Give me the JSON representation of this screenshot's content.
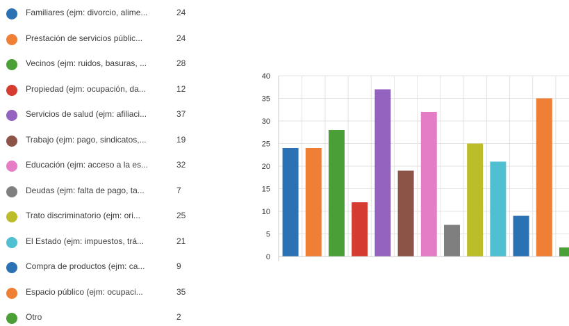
{
  "chart_data": {
    "type": "bar",
    "categories": [
      "Familiares (ejm: divorcio, alime...",
      "Prestación de servicios públic...",
      "Vecinos (ejm: ruidos, basuras, ...",
      "Propiedad (ejm: ocupación, da...",
      "Servicios de salud (ejm: afiliaci...",
      "Trabajo (ejm: pago, sindicatos,...",
      "Educación (ejm: acceso a la es...",
      "Deudas (ejm: falta de pago, ta...",
      "Trato discriminatorio (ejm: ori...",
      "El Estado (ejm: impuestos, trá...",
      "Compra de productos (ejm: ca...",
      "Espacio público (ejm: ocupaci...",
      "Otro"
    ],
    "values": [
      24,
      24,
      28,
      12,
      37,
      19,
      32,
      7,
      25,
      21,
      9,
      35,
      2
    ],
    "colors": [
      "#2b72b5",
      "#f07f36",
      "#4aa036",
      "#d63b30",
      "#9363bf",
      "#8c5447",
      "#e57cc6",
      "#7f7f7f",
      "#bcbd28",
      "#4fc0d2",
      "#2b72b5",
      "#f07f36",
      "#4aa036"
    ],
    "ylim": [
      0,
      40
    ],
    "yticks": [
      "0",
      "5",
      "10",
      "15",
      "20",
      "25",
      "30",
      "35",
      "40"
    ],
    "grid": true,
    "legend_position": "left"
  }
}
